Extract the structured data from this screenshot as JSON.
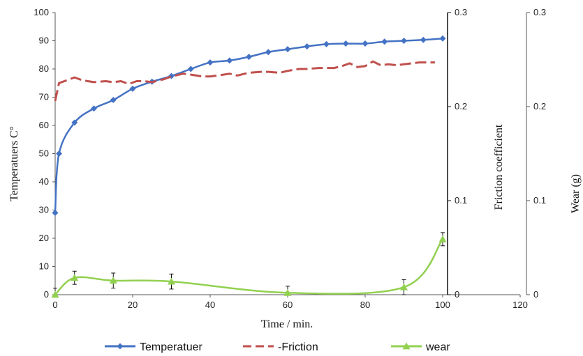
{
  "chart_data": {
    "type": "line",
    "xlabel": "Time / min.",
    "ylabel_left": "Temperatuers C°",
    "ylabel_mid": "Friction coefficient",
    "ylabel_right": "Wear (g)",
    "xlim": [
      0,
      120
    ],
    "xticks": [
      "0",
      "20",
      "40",
      "60",
      "80",
      "100",
      "120"
    ],
    "ylim_left": [
      0,
      100
    ],
    "yticks_left": [
      "0",
      "10",
      "20",
      "30",
      "40",
      "50",
      "60",
      "70",
      "80",
      "90",
      "100"
    ],
    "ylim_mid": [
      0,
      0.3
    ],
    "yticks_mid": [
      "0",
      "0.1",
      "0.2",
      "0.3"
    ],
    "ylim_right": [
      0,
      0.3
    ],
    "yticks_right": [
      "0",
      "0.1",
      "0.2",
      "0.3"
    ],
    "legend_position": "bottom",
    "grid": false,
    "series": [
      {
        "name": "Temperatuer",
        "axis": "left",
        "color": "#4472C4",
        "marker": "diamond",
        "x": [
          0,
          1,
          5,
          10,
          15,
          20,
          25,
          30,
          35,
          40,
          45,
          50,
          55,
          60,
          65,
          70,
          75,
          80,
          85,
          90,
          95,
          100
        ],
        "y": [
          29,
          50,
          61,
          66,
          69,
          73,
          75.5,
          77.5,
          80,
          82.3,
          83,
          84.3,
          86,
          87,
          88,
          88.8,
          89,
          89,
          89.7,
          90,
          90.3,
          90.8
        ]
      },
      {
        "name": "-Friction",
        "axis": "mid",
        "color": "#C0504D",
        "dash": true,
        "x": [
          0,
          1,
          3,
          5,
          7,
          10,
          13,
          15,
          17,
          19,
          21,
          23,
          25,
          28,
          30,
          33,
          35,
          38,
          40,
          42,
          45,
          47,
          50,
          53,
          55,
          58,
          60,
          63,
          65,
          68,
          70,
          72,
          74,
          76,
          78,
          80,
          82,
          84,
          86,
          88,
          90,
          92,
          94,
          96,
          98
        ],
        "y": [
          0.206,
          0.225,
          0.228,
          0.231,
          0.228,
          0.226,
          0.227,
          0.226,
          0.227,
          0.224,
          0.227,
          0.227,
          0.226,
          0.229,
          0.232,
          0.235,
          0.234,
          0.232,
          0.232,
          0.233,
          0.235,
          0.233,
          0.236,
          0.237,
          0.237,
          0.236,
          0.238,
          0.24,
          0.24,
          0.241,
          0.241,
          0.241,
          0.243,
          0.246,
          0.242,
          0.243,
          0.248,
          0.244,
          0.245,
          0.244,
          0.245,
          0.246,
          0.247,
          0.247,
          0.247
        ]
      },
      {
        "name": "wear",
        "axis": "right",
        "color": "#92D050",
        "marker": "triangle",
        "x": [
          0,
          5,
          15,
          30,
          60,
          90,
          100
        ],
        "y": [
          0,
          0.018,
          0.015,
          0.014,
          0.002,
          0.008,
          0.059
        ],
        "error": [
          0.007,
          0.007,
          0.008,
          0.008,
          0.007,
          0.008,
          0.007
        ]
      }
    ]
  }
}
